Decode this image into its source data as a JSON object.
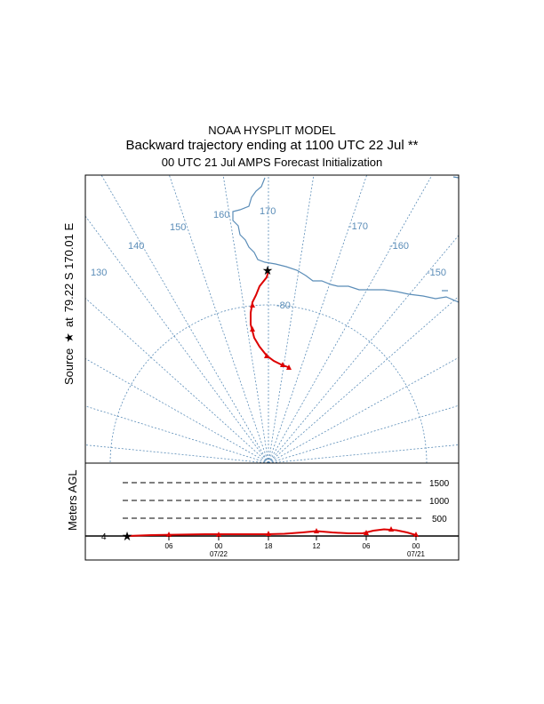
{
  "header": {
    "model": "NOAA HYSPLIT MODEL",
    "subtitle": "Backward trajectory ending at 1100 UTC 22 Jul **",
    "init": "00 UTC 21 Jul    AMPS  Forecast Initialization"
  },
  "source": {
    "word": "Source",
    "star": "★",
    "at": "at",
    "coords": "79.22 S  170.01 E"
  },
  "map": {
    "lon_labels": [
      "170",
      "160",
      "150",
      "140",
      "130",
      "-170",
      "-160",
      "-150"
    ],
    "lat_label": "-80"
  },
  "height_panel": {
    "ylabel": "Meters AGL",
    "levels": [
      "1500",
      "1000",
      "500"
    ],
    "left_tick": "4",
    "hour_ticks": [
      "06",
      "00",
      "18",
      "12",
      "06",
      "00"
    ],
    "date_ticks": [
      "07/22",
      "07/21"
    ]
  },
  "colors": {
    "trajectory": "#dd0000",
    "grid": "#5b8db8",
    "frame": "#000000"
  }
}
